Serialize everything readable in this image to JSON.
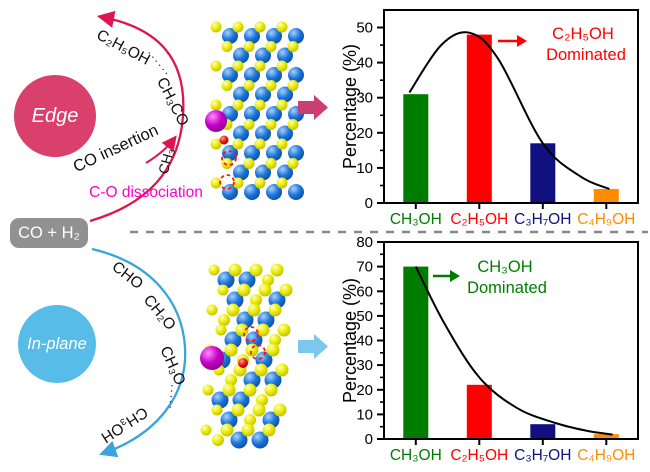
{
  "figure": {
    "feed": {
      "label": "CO + H₂"
    },
    "edge": {
      "site_label": "Edge",
      "species": [
        "CH₃",
        "CH₃CO",
        "C₂H₅OH"
      ],
      "dots": "······",
      "insertion_label": "CO insertion",
      "dissociation_label": "C-O dissociation",
      "colors": {
        "circle": "#D9406B",
        "pathway_arrow": "#DC1650",
        "dissociation_text": "#FF00CC",
        "block_arrow": "#CC3D74"
      }
    },
    "inplane": {
      "site_label": "In-plane",
      "species": [
        "CHO",
        "CH₂O",
        "CH₃O",
        "CH₃OH"
      ],
      "dots": "·····",
      "colors": {
        "circle": "#58BCE8",
        "pathway_arrow": "#35A5DC",
        "block_arrow": "#7CC8EC"
      }
    },
    "structures": {
      "atom_colors": {
        "metal_blue": "#1B75D8",
        "sulfur_yellow": "#E9E900",
        "promoter_magenta": "#C400C4",
        "oxygen_red": "#E11212",
        "vacancy_outline": "#FF1111"
      }
    },
    "separator_color": "#888888"
  },
  "chart_data": [
    {
      "type": "bar",
      "panel": "edge",
      "categories": [
        "CH₃OH",
        "C₂H₅OH",
        "C₃H₇OH",
        "C₄H₉OH"
      ],
      "values": [
        31,
        48,
        17,
        4
      ],
      "bar_colors": [
        "#007D00",
        "#FF0000",
        "#101080",
        "#FF8C00"
      ],
      "ylabel": "Percentage (%)",
      "xlabel": "",
      "ylim": [
        0,
        55
      ],
      "yticks": [
        0,
        10,
        20,
        30,
        40,
        50
      ],
      "minor_step": 5,
      "grid": false,
      "fit_curve": {
        "x": [
          -0.1,
          0.4,
          0.85,
          1.3,
          2.0,
          2.6,
          3.05
        ],
        "y": [
          31.5,
          45,
          48.5,
          41,
          17,
          7.5,
          4
        ],
        "color": "#000000"
      },
      "annotation": {
        "lines": [
          "C₂H₅OH",
          "Dominated"
        ],
        "color": "#FF0000"
      }
    },
    {
      "type": "bar",
      "panel": "inplane",
      "categories": [
        "CH₃OH",
        "C₂H₅OH",
        "C₃H₇OH",
        "C₄H₉OH"
      ],
      "values": [
        70,
        22,
        6,
        2
      ],
      "bar_colors": [
        "#007D00",
        "#FF0000",
        "#101080",
        "#FF8C00"
      ],
      "ylabel": "Percentage (%)",
      "xlabel": "",
      "ylim": [
        0,
        80
      ],
      "yticks": [
        0,
        10,
        20,
        30,
        40,
        50,
        60,
        70,
        80
      ],
      "minor_step": 5,
      "grid": false,
      "fit_curve": {
        "x": [
          0,
          0.45,
          1.0,
          1.6,
          2.2,
          2.7,
          3.1
        ],
        "y": [
          70,
          47,
          25,
          12.5,
          6.5,
          3.3,
          1.8
        ],
        "color": "#000000"
      },
      "annotation": {
        "lines": [
          "CH₃OH",
          "Dominated"
        ],
        "color": "#007D00"
      }
    }
  ]
}
